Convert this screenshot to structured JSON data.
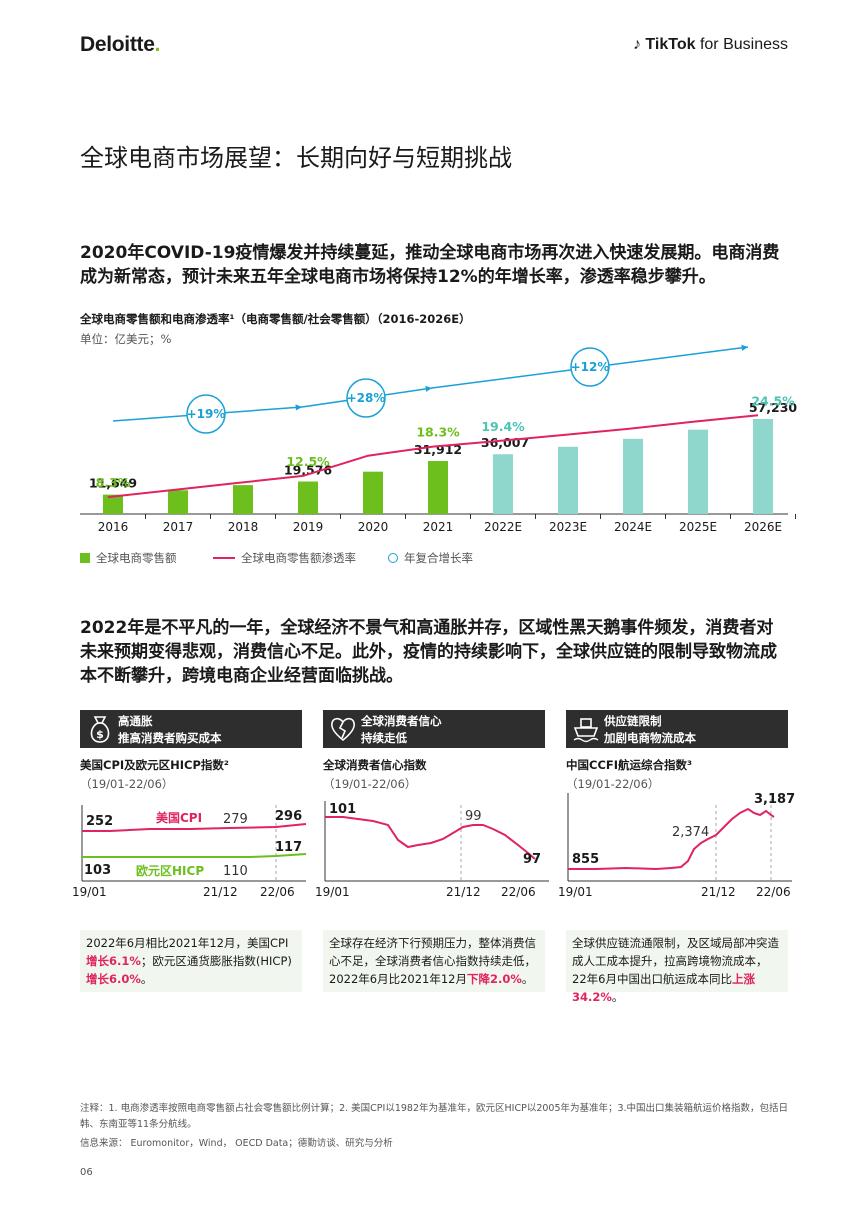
{
  "header": {
    "deloitte": "Deloitte",
    "deloitte_dot": ".",
    "tiktok_brand": "TikTok",
    "tiktok_suffix": "for Business"
  },
  "page_title": "全球电商市场展望：长期向好与短期挑战",
  "lead1": "2020年COVID-19疫情爆发并持续蔓延，推动全球电商市场再次进入快速发展期。电商消费成为新常态，预计未来五年全球电商市场将保持12%的年增长率，渗透率稳步攀升。",
  "chart": {
    "title": "全球电商零售额和电商渗透率¹（电商零售额/社会零售额）（2016-2026E）",
    "unit": "单位：亿美元；%",
    "legend": {
      "retail": "全球电商零售额",
      "penetration": "全球电商零售额渗透率",
      "cagr": "年复合增长率"
    },
    "cagr_labels": [
      "+19%",
      "+28%",
      "+12%"
    ],
    "colors": {
      "actual": "#6cbf1c",
      "forecast": "#8fd6cc",
      "line": "#e0245e",
      "cagr": "#1aa0d8"
    }
  },
  "chart_data": {
    "type": "bar",
    "categories": [
      "2016",
      "2017",
      "2018",
      "2019",
      "2020",
      "2021",
      "2022E",
      "2023E",
      "2024E",
      "2025E",
      "2026E"
    ],
    "series": [
      {
        "name": "全球电商零售额",
        "values": [
          11649,
          14300,
          17400,
          19576,
          25500,
          31912,
          36007,
          40500,
          45300,
          50800,
          57230
        ]
      },
      {
        "name": "全球电商零售额渗透率",
        "values": [
          8.3,
          9.7,
          11.1,
          12.5,
          16.5,
          18.3,
          19.4,
          20.6,
          21.8,
          23.2,
          24.5
        ]
      }
    ],
    "value_labels": {
      "2016": "11,649",
      "2019": "19,576",
      "2021": "31,912",
      "2022E": "36,007",
      "2026E": "57,230"
    },
    "rate_labels": {
      "2016": "8.3%",
      "2019": "12.5%",
      "2021": "18.3%",
      "2022E": "19.4%",
      "2026E": "24.5%"
    }
  },
  "lead2": "2022年是不平凡的一年，全球经济不景气和高通胀并存，区域性黑天鹅事件频发，消费者对未来预期变得悲观，消费信心不足。此外，疫情的持续影响下，全球供应链的限制导致物流成本不断攀升，跨境电商企业经营面临挑战。",
  "cards": [
    {
      "head1": "高通胀",
      "head2": "推高消费者购买成本",
      "icon": "money-bag-icon",
      "subtitle": "美国CPI及欧元区HICP指数²",
      "range": "（19/01-22/06）",
      "series_us": "美国CPI",
      "series_eu": "欧元区HICP",
      "x_labels": [
        "19/01",
        "21/12",
        "22/06"
      ],
      "us_labels": [
        "252",
        "279",
        "296"
      ],
      "eu_labels": [
        "103",
        "110",
        "117"
      ],
      "note_pre": "2022年6月相比2021年12月，美国CPI",
      "note_hl1": "增长6.1%",
      "note_mid": "；欧元区通货膨胀指数(HICP)",
      "note_hl2": "增长6.0%",
      "note_end": "。"
    },
    {
      "head1": "全球消费者信心",
      "head2": "持续走低",
      "icon": "broken-heart-icon",
      "subtitle": "全球消费者信心指数",
      "range": "（19/01-22/06）",
      "x_labels": [
        "19/01",
        "21/12",
        "22/06"
      ],
      "labels": [
        "101",
        "99",
        "97"
      ],
      "note_pre": "全球存在经济下行预期压力，整体消费信心不足，全球消费者信心指数持续走低，2022年6月比2021年12月",
      "note_hl1": "下降2.0%",
      "note_end": "。"
    },
    {
      "head1": "供应链限制",
      "head2": "加剧电商物流成本",
      "icon": "cargo-ship-icon",
      "subtitle": "中国CCFI航运综合指数³",
      "range": "（19/01-22/06）",
      "x_labels": [
        "19/01",
        "21/12",
        "22/06"
      ],
      "labels": [
        "855",
        "2,374",
        "3,187"
      ],
      "note_pre": "全球供应链流通限制，及区域局部冲突造成人工成本提升，拉高跨境物流成本，22年6月中国出口航运成本同比",
      "note_hl1": "上涨34.2%",
      "note_end": "。"
    }
  ],
  "footnotes": {
    "notes": "注释：1. 电商渗透率按照电商零售额占社会零售额比例计算；2. 美国CPI以1982年为基准年，欧元区HICP以2005年为基准年；3.中国出口集装箱航运价格指数，包括日韩、东南亚等11条分航线。",
    "source": "信息来源： Euromonitor，Wind， OECD Data；德勤访谈、研究与分析"
  },
  "page_number": "06"
}
